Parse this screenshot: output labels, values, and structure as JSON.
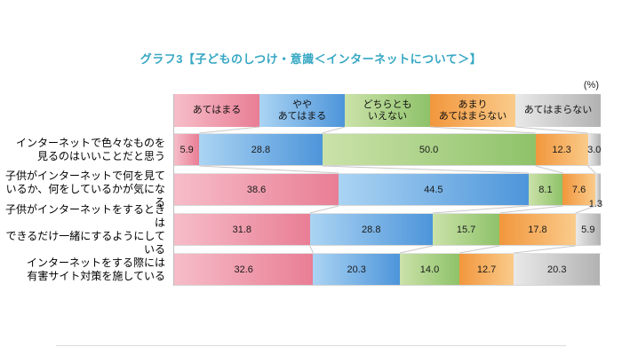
{
  "title": "グラフ3【子どものしつけ・意識＜インターネットについて＞】",
  "unit_label": "(%)",
  "colors": {
    "title": "#35a7c3",
    "connector": "#c8c8c8",
    "axis": "#bdbdbd"
  },
  "chart_data": {
    "type": "bar",
    "orientation": "horizontal",
    "stacked": true,
    "unit": "%",
    "xlim": [
      0,
      100
    ],
    "legend_position": "top",
    "grid": false,
    "categories": [
      "インターネットで色々なものを\n見るのはいいことだと思う",
      "子供がインターネットで何を見て\nいるか、何をしているかが気になる",
      "子供がインターネットをするときは\nできるだけ一緒にするようにしている",
      "インターネットをする際には\n有害サイト対策を施している"
    ],
    "series": [
      {
        "name": "あてはまる",
        "label": "あてはまる",
        "gradient": [
          "#f6bdc8",
          "#e97e95"
        ],
        "values": [
          5.9,
          38.6,
          31.8,
          32.6
        ]
      },
      {
        "name": "ややあてはまる",
        "label": "やや\nあてはまる",
        "gradient": [
          "#abd4f3",
          "#4d95da"
        ],
        "values": [
          28.8,
          44.5,
          28.8,
          20.3
        ]
      },
      {
        "name": "どちらともいえない",
        "label": "どちらとも\nいえない",
        "gradient": [
          "#cbe2a9",
          "#8ec269"
        ],
        "values": [
          50.0,
          8.1,
          15.7,
          14.0
        ]
      },
      {
        "name": "あまりあてはまらない",
        "label": "あまり\nあてはまらない",
        "gradient": [
          "#f2973d",
          "#facb8b"
        ],
        "values": [
          12.3,
          7.6,
          17.8,
          12.7
        ]
      },
      {
        "name": "あてはまらない",
        "label": "あてはまらない",
        "gradient": [
          "#e9e9e9",
          "#b2b2b2"
        ],
        "values": [
          3.0,
          1.3,
          5.9,
          20.3
        ]
      }
    ]
  }
}
